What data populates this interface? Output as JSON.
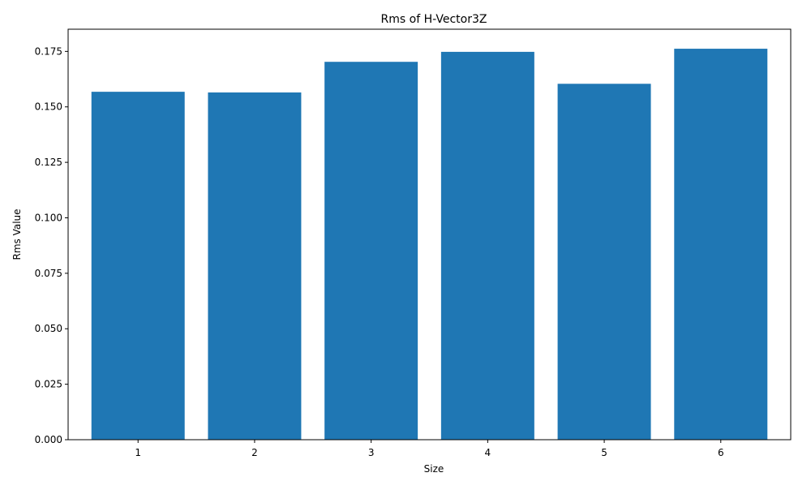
{
  "chart_data": {
    "type": "bar",
    "title": "Rms of H-Vector3Z",
    "xlabel": "Size",
    "ylabel": "Rms Value",
    "categories": [
      "1",
      "2",
      "3",
      "4",
      "5",
      "6"
    ],
    "values": [
      0.1568,
      0.1565,
      0.1703,
      0.1748,
      0.1604,
      0.1762
    ],
    "ylim": [
      0,
      0.185
    ],
    "yticks": [
      "0.000",
      "0.025",
      "0.050",
      "0.075",
      "0.100",
      "0.125",
      "0.150",
      "0.175"
    ],
    "grid": false,
    "bar_color": "#1f77b4"
  }
}
